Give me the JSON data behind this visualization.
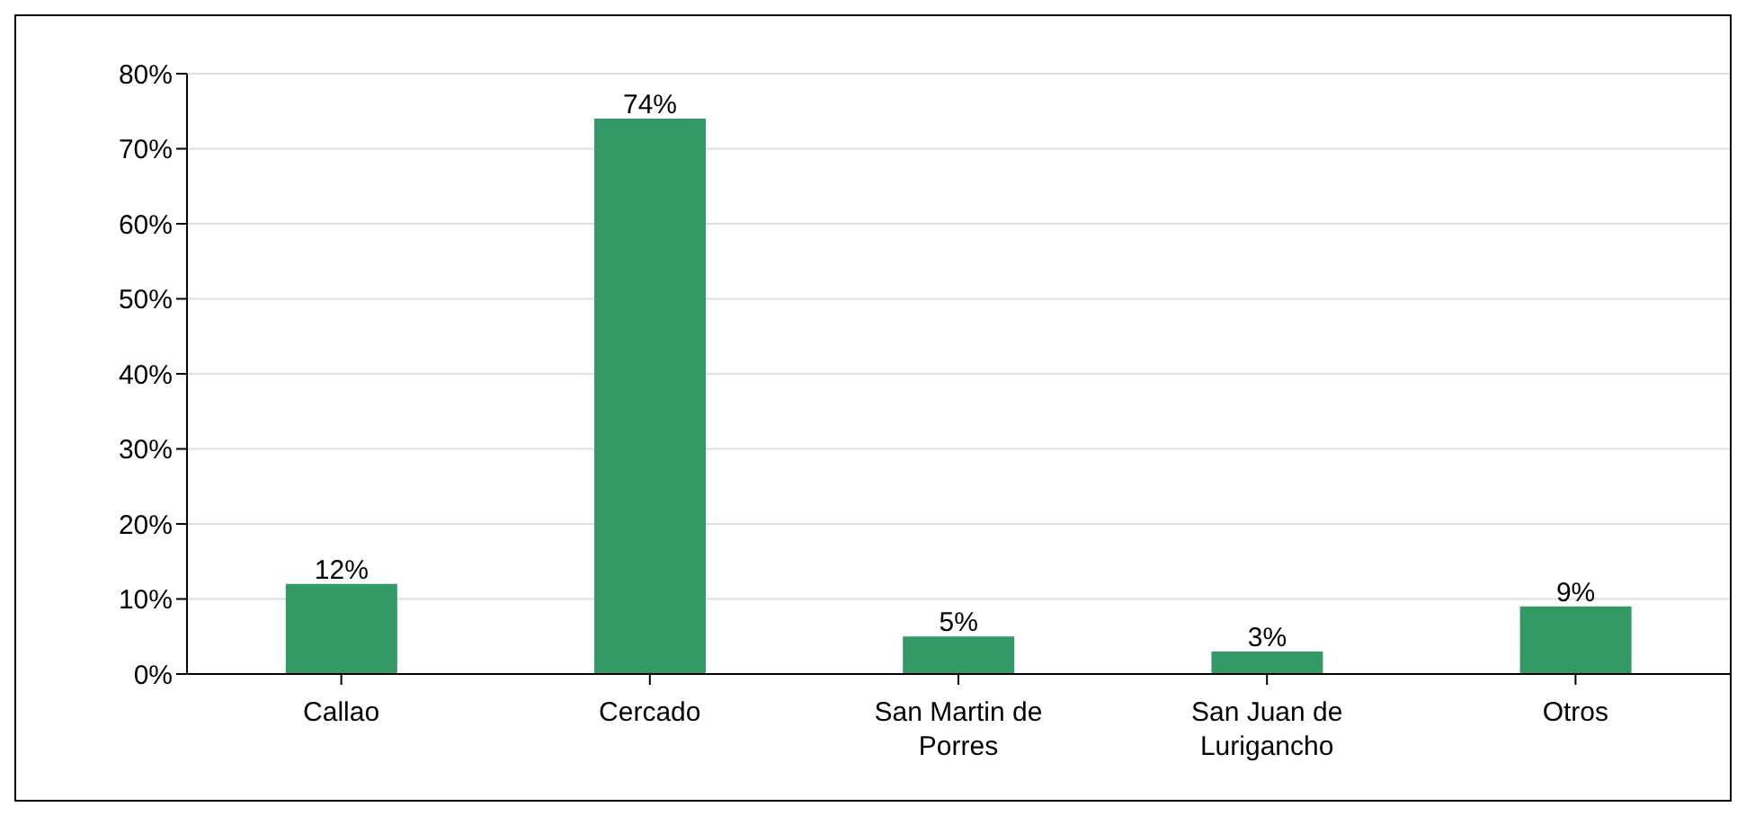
{
  "chart_data": {
    "type": "bar",
    "categories": [
      "Callao",
      "Cercado",
      "San Martin de Porres",
      "San Juan de Lurigancho",
      "Otros"
    ],
    "values": [
      12,
      74,
      5,
      3,
      9
    ],
    "value_labels": [
      "12%",
      "74%",
      "5%",
      "3%",
      "9%"
    ],
    "color": "#339966",
    "ylim": [
      0,
      80
    ],
    "yticks": [
      {
        "value": 0,
        "label": "0%"
      },
      {
        "value": 10,
        "label": "10%"
      },
      {
        "value": 20,
        "label": "20%"
      },
      {
        "value": 30,
        "label": "30%"
      },
      {
        "value": 40,
        "label": "40%"
      },
      {
        "value": 50,
        "label": "50%"
      },
      {
        "value": 60,
        "label": "60%"
      },
      {
        "value": 70,
        "label": "70%"
      },
      {
        "value": 80,
        "label": "80%"
      }
    ],
    "grid": "y"
  }
}
